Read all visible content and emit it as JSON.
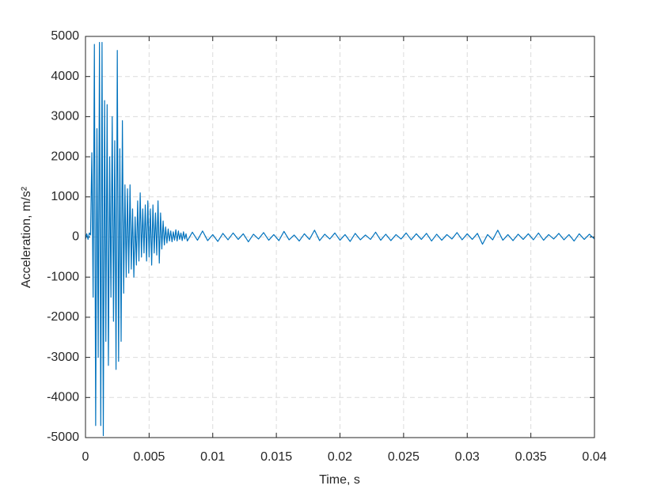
{
  "chart_data": {
    "type": "line",
    "xlabel": "Time, s",
    "ylabel": "Acceleration, m/s²",
    "color": "#0072bd",
    "grid": true,
    "xlim": [
      0,
      0.04
    ],
    "xticks": [
      0,
      0.005,
      0.01,
      0.015,
      0.02,
      0.025,
      0.03,
      0.035,
      0.04
    ],
    "ylim": [
      -5000,
      5000
    ],
    "yticks": [
      -5000,
      -4000,
      -3000,
      -2000,
      -1000,
      0,
      1000,
      2000,
      3000,
      4000,
      5000
    ],
    "x": [
      0,
      0.0001,
      0.0002,
      0.0003,
      0.0004,
      0.0005,
      0.0006,
      0.0007,
      0.0008,
      0.0009,
      0.001,
      0.0011,
      0.0012,
      0.0013,
      0.0014,
      0.0015,
      0.0016,
      0.0017,
      0.0018,
      0.0019,
      0.002,
      0.0021,
      0.0022,
      0.0023,
      0.0024,
      0.0025,
      0.0026,
      0.0027,
      0.0028,
      0.0029,
      0.003,
      0.0031,
      0.0032,
      0.0033,
      0.0034,
      0.0035,
      0.0036,
      0.0037,
      0.0038,
      0.0039,
      0.004,
      0.0041,
      0.0042,
      0.0043,
      0.0044,
      0.0045,
      0.0046,
      0.0047,
      0.0048,
      0.0049,
      0.005,
      0.0051,
      0.0052,
      0.0053,
      0.0054,
      0.0055,
      0.0056,
      0.0057,
      0.0058,
      0.0059,
      0.006,
      0.0061,
      0.0062,
      0.0063,
      0.0064,
      0.0065,
      0.0066,
      0.0067,
      0.0068,
      0.0069,
      0.007,
      0.0071,
      0.0072,
      0.0073,
      0.0074,
      0.0075,
      0.0076,
      0.0077,
      0.0078,
      0.0079,
      0.008,
      0.0084,
      0.0088,
      0.0092,
      0.0096,
      0.01,
      0.0104,
      0.0108,
      0.0112,
      0.0116,
      0.012,
      0.0124,
      0.0128,
      0.0132,
      0.0136,
      0.014,
      0.0144,
      0.0148,
      0.0152,
      0.0156,
      0.016,
      0.0164,
      0.0168,
      0.0172,
      0.0176,
      0.018,
      0.0184,
      0.0188,
      0.0192,
      0.0196,
      0.02,
      0.0204,
      0.0208,
      0.0212,
      0.0216,
      0.022,
      0.0224,
      0.0228,
      0.0232,
      0.0236,
      0.024,
      0.0244,
      0.0248,
      0.0252,
      0.0256,
      0.026,
      0.0264,
      0.0268,
      0.0272,
      0.0276,
      0.028,
      0.0284,
      0.0288,
      0.0292,
      0.0296,
      0.03,
      0.0304,
      0.0308,
      0.0312,
      0.0316,
      0.032,
      0.0324,
      0.0328,
      0.0332,
      0.0336,
      0.034,
      0.0344,
      0.0348,
      0.0352,
      0.0356,
      0.036,
      0.0364,
      0.0368,
      0.0372,
      0.0376,
      0.038,
      0.0384,
      0.0388,
      0.0392,
      0.0396,
      0.04
    ],
    "values": [
      -50,
      80,
      -60,
      100,
      50,
      2100,
      -1500,
      4800,
      -4700,
      2700,
      -3000,
      4850,
      -4700,
      4850,
      -4950,
      3400,
      -2600,
      3300,
      -3200,
      2000,
      -1500,
      3000,
      -2100,
      2400,
      -3300,
      4650,
      -3100,
      2200,
      -2600,
      2900,
      -1400,
      1300,
      -1000,
      1200,
      -900,
      1300,
      -800,
      700,
      -1000,
      500,
      -700,
      900,
      -600,
      1100,
      -500,
      700,
      -400,
      800,
      -600,
      900,
      -500,
      700,
      -700,
      800,
      -400,
      600,
      -450,
      900,
      -650,
      600,
      -300,
      400,
      -200,
      250,
      -150,
      200,
      -100,
      150,
      -120,
      130,
      -80,
      180,
      -100,
      150,
      -60,
      100,
      -90,
      130,
      -50,
      80,
      -100,
      120,
      -80,
      150,
      -90,
      60,
      -110,
      90,
      -70,
      100,
      -60,
      80,
      -120,
      70,
      -50,
      110,
      -80,
      60,
      -90,
      140,
      -70,
      50,
      -100,
      80,
      -60,
      170,
      -90,
      70,
      -50,
      100,
      -80,
      60,
      -110,
      90,
      -70,
      50,
      -60,
      120,
      -80,
      70,
      -90,
      60,
      -50,
      100,
      -70,
      80,
      -60,
      90,
      -100,
      70,
      -80,
      60,
      -50,
      110,
      -70,
      80,
      -60,
      90,
      -180,
      60,
      -70,
      170,
      -80,
      60,
      -90,
      70,
      -60,
      80,
      -70,
      100,
      -80,
      60,
      -50,
      90,
      -70,
      60,
      -100,
      80,
      -60,
      70,
      -50
    ],
    "ticks_inward": true
  }
}
